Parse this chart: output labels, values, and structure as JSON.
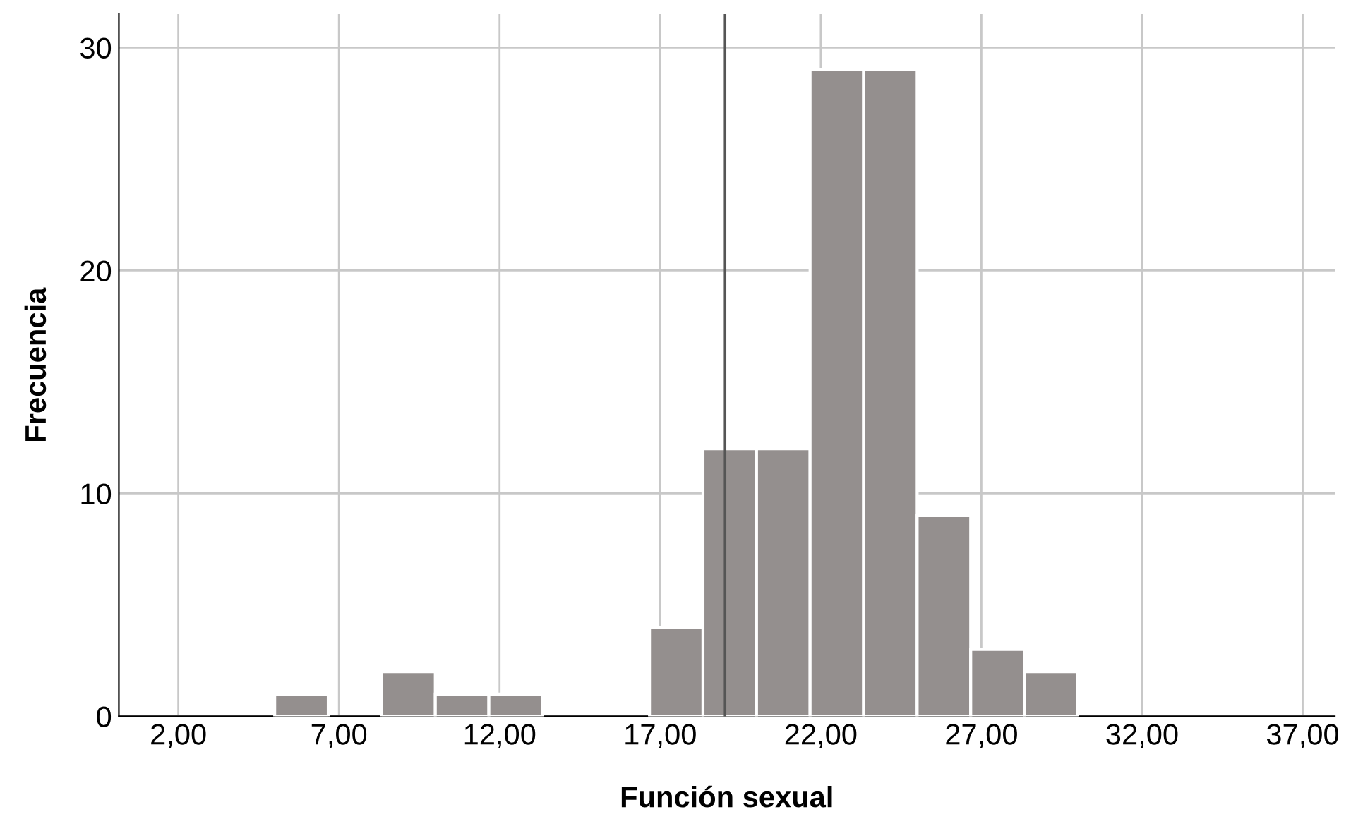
{
  "chart_data": {
    "type": "histogram",
    "xlabel": "Función sexual",
    "ylabel": "Frecuencia",
    "bins": [
      5,
      6.667,
      8.333,
      10,
      11.667,
      13.333,
      15,
      16.667,
      18.333,
      20,
      21.667,
      23.333,
      25,
      26.667,
      28.333,
      30
    ],
    "values": [
      1,
      0,
      2,
      1,
      1,
      0,
      0,
      4,
      12,
      12,
      29,
      29,
      9,
      3,
      2
    ],
    "color": "#948f8e",
    "xlim": [
      0.15,
      38
    ],
    "ylim": [
      0,
      31.5
    ],
    "xticks": [
      {
        "value": 2,
        "label": "2,00"
      },
      {
        "value": 7,
        "label": "7,00"
      },
      {
        "value": 12,
        "label": "12,00"
      },
      {
        "value": 17,
        "label": "17,00"
      },
      {
        "value": 22,
        "label": "22,00"
      },
      {
        "value": 27,
        "label": "27,00"
      },
      {
        "value": 32,
        "label": "32,00"
      },
      {
        "value": 37,
        "label": "37,00"
      }
    ],
    "yticks": [
      0,
      10,
      20,
      30
    ],
    "ref_lines": [
      {
        "axis": "x",
        "value": 19.02,
        "color": "#555555"
      }
    ],
    "grid": true
  }
}
